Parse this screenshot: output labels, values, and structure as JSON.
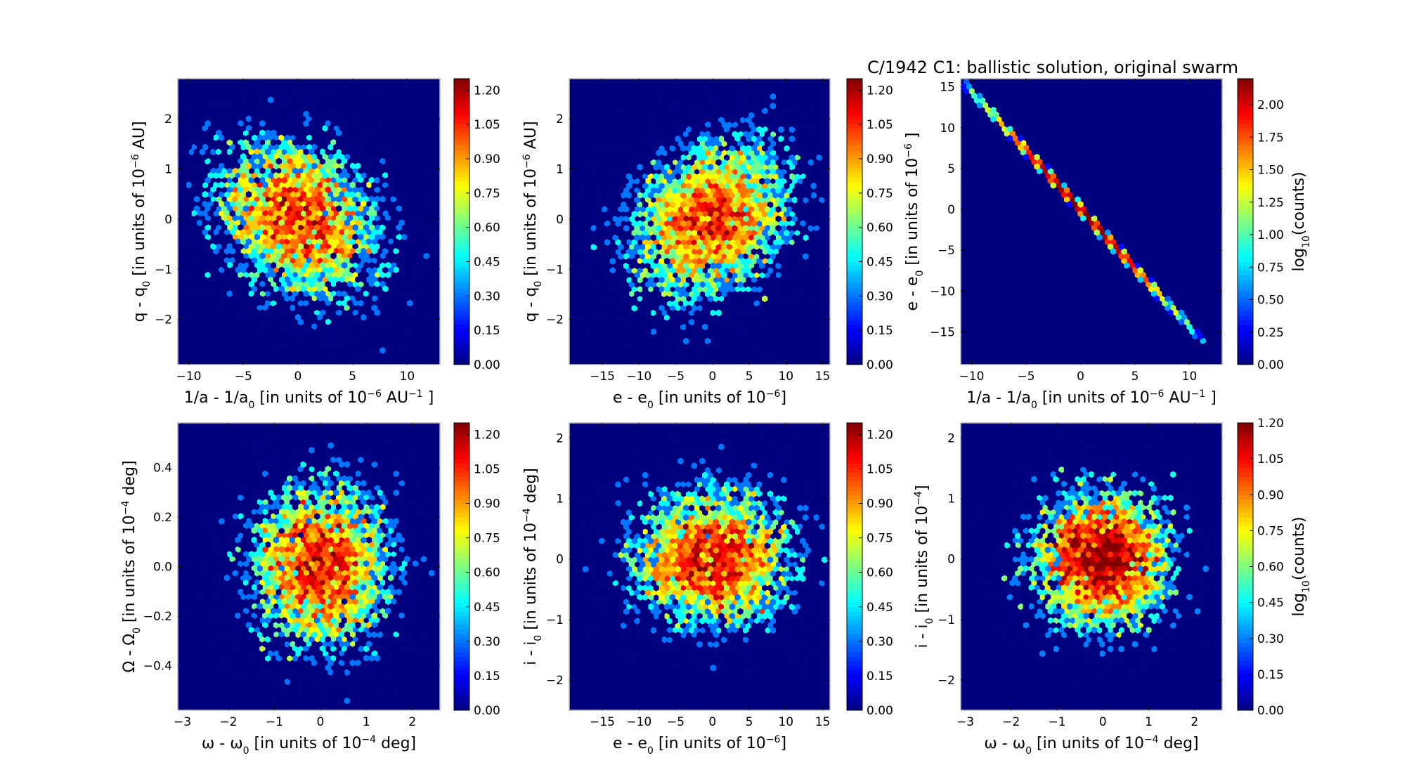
{
  "chart_data": {
    "type": "heatmap",
    "title": "C/1942 C1:  ballistic solution, original swarm",
    "panels": [
      {
        "id": "q-vs-inva",
        "xlabel": [
          [
            "1/a - 1/a",
            ""
          ],
          [
            "0",
            "sub"
          ],
          [
            " [in units of 10",
            ""
          ],
          [
            "−6",
            "sup"
          ],
          [
            "  AU",
            ""
          ],
          [
            "−1",
            "sup"
          ],
          [
            " ]",
            ""
          ]
        ],
        "ylabel": [
          [
            "q - q",
            ""
          ],
          [
            "0",
            "sub"
          ],
          [
            " [in units of 10",
            ""
          ],
          [
            "−6",
            "sup"
          ],
          [
            "  AU]",
            ""
          ]
        ],
        "xlim": [
          -11,
          13
        ],
        "ylim": [
          -2.9,
          2.8
        ],
        "xticks": [
          "−10",
          "−5",
          "0",
          "5",
          "10"
        ],
        "xtick_values": [
          -10,
          -5,
          0,
          5,
          10
        ],
        "yticks": [
          "−2",
          "−1",
          "0",
          "1",
          "2"
        ],
        "ytick_values": [
          -2,
          -1,
          0,
          1,
          2
        ],
        "colorbar": {
          "range": [
            0,
            1.25
          ],
          "ticks": [
            "0.00",
            "0.15",
            "0.30",
            "0.45",
            "0.60",
            "0.75",
            "0.90",
            "1.05",
            "1.20"
          ],
          "tick_values": [
            0,
            0.15,
            0.3,
            0.45,
            0.6,
            0.75,
            0.9,
            1.05,
            1.2
          ],
          "label": null
        },
        "distribution": {
          "kind": "gaussian",
          "mean": [
            0,
            0
          ],
          "sd": [
            4.0,
            0.85
          ],
          "corr": -0.25,
          "n": 5000
        }
      },
      {
        "id": "q-vs-e",
        "xlabel": [
          [
            "e - e",
            ""
          ],
          [
            "0",
            "sub"
          ],
          [
            " [in units of 10",
            ""
          ],
          [
            "−6",
            "sup"
          ],
          [
            "]",
            ""
          ]
        ],
        "ylabel": [
          [
            "q - q",
            ""
          ],
          [
            "0",
            "sub"
          ],
          [
            " [in units of 10",
            ""
          ],
          [
            "−6",
            "sup"
          ],
          [
            "  AU]",
            ""
          ]
        ],
        "xlim": [
          -19.5,
          16
        ],
        "ylim": [
          -2.9,
          2.8
        ],
        "xticks": [
          "−15",
          "−10",
          "−5",
          "0",
          "5",
          "10",
          "15"
        ],
        "xtick_values": [
          -15,
          -10,
          -5,
          0,
          5,
          10,
          15
        ],
        "yticks": [
          "−2",
          "−1",
          "0",
          "1",
          "2"
        ],
        "ytick_values": [
          -2,
          -1,
          0,
          1,
          2
        ],
        "colorbar": {
          "range": [
            0,
            1.25
          ],
          "ticks": [
            "0.00",
            "0.15",
            "0.30",
            "0.45",
            "0.60",
            "0.75",
            "0.90",
            "1.05",
            "1.20"
          ],
          "tick_values": [
            0,
            0.15,
            0.3,
            0.45,
            0.6,
            0.75,
            0.9,
            1.05,
            1.2
          ],
          "label": null
        },
        "distribution": {
          "kind": "gaussian",
          "mean": [
            0,
            0
          ],
          "sd": [
            5.8,
            0.85
          ],
          "corr": 0.25,
          "n": 5000
        }
      },
      {
        "id": "e-vs-inva",
        "xlabel": [
          [
            "1/a - 1/a",
            ""
          ],
          [
            "0",
            "sub"
          ],
          [
            " [in units of 10",
            ""
          ],
          [
            "−6",
            "sup"
          ],
          [
            "  AU",
            ""
          ],
          [
            "−1",
            "sup"
          ],
          [
            " ]",
            ""
          ]
        ],
        "ylabel": [
          [
            "e - e",
            ""
          ],
          [
            "0",
            "sub"
          ],
          [
            " [in units of 10",
            ""
          ],
          [
            "−6",
            "sup"
          ],
          [
            " ]",
            ""
          ]
        ],
        "xlim": [
          -11,
          13
        ],
        "ylim": [
          -19,
          16
        ],
        "xticks": [
          "−10",
          "−5",
          "0",
          "5",
          "10"
        ],
        "xtick_values": [
          -10,
          -5,
          0,
          5,
          10
        ],
        "yticks": [
          "−15",
          "−10",
          "−5",
          "0",
          "5",
          "10",
          "15"
        ],
        "ytick_values": [
          -15,
          -10,
          -5,
          0,
          5,
          10,
          15
        ],
        "colorbar": {
          "range": [
            0,
            2.2
          ],
          "ticks": [
            "0.00",
            "0.25",
            "0.50",
            "0.75",
            "1.00",
            "1.25",
            "1.50",
            "1.75",
            "2.00"
          ],
          "tick_values": [
            0,
            0.25,
            0.5,
            0.75,
            1,
            1.25,
            1.5,
            1.75,
            2
          ],
          "label": [
            [
              "log",
              ""
            ],
            [
              "10",
              "sub"
            ],
            [
              "(counts)",
              ""
            ]
          ]
        },
        "distribution": {
          "kind": "linear",
          "slope": -1.44,
          "intercept": 0,
          "sd": [
            4.0
          ],
          "n": 5000
        }
      },
      {
        "id": "Omega-vs-omega",
        "xlabel": [
          [
            "ω - ω",
            ""
          ],
          [
            "0",
            "sub"
          ],
          [
            " [in units of 10",
            ""
          ],
          [
            "−4",
            "sup"
          ],
          [
            "  deg]",
            ""
          ]
        ],
        "ylabel": [
          [
            "Ω - Ω",
            ""
          ],
          [
            "0",
            "sub"
          ],
          [
            " [in units of 10",
            ""
          ],
          [
            "−4",
            "sup"
          ],
          [
            "  deg]",
            ""
          ]
        ],
        "xlim": [
          -3.1,
          2.6
        ],
        "ylim": [
          -0.58,
          0.58
        ],
        "xticks": [
          "−3",
          "−2",
          "−1",
          "0",
          "1",
          "2"
        ],
        "xtick_values": [
          -3,
          -2,
          -1,
          0,
          1,
          2
        ],
        "yticks": [
          "−0.4",
          "−0.2",
          "0.0",
          "0.2",
          "0.4"
        ],
        "ytick_values": [
          -0.4,
          -0.2,
          0,
          0.2,
          0.4
        ],
        "colorbar": {
          "range": [
            0,
            1.25
          ],
          "ticks": [
            "0.00",
            "0.15",
            "0.30",
            "0.45",
            "0.60",
            "0.75",
            "0.90",
            "1.05",
            "1.20"
          ],
          "tick_values": [
            0,
            0.15,
            0.3,
            0.45,
            0.6,
            0.75,
            0.9,
            1.05,
            1.2
          ],
          "label": null
        },
        "distribution": {
          "kind": "gaussian",
          "mean": [
            0,
            0
          ],
          "sd": [
            0.8,
            0.18
          ],
          "corr": 0,
          "n": 5000
        }
      },
      {
        "id": "i-vs-e",
        "xlabel": [
          [
            "e - e",
            ""
          ],
          [
            "0",
            "sub"
          ],
          [
            " [in units of 10",
            ""
          ],
          [
            "−6",
            "sup"
          ],
          [
            "]",
            ""
          ]
        ],
        "ylabel": [
          [
            "i - i",
            ""
          ],
          [
            "0",
            "sub"
          ],
          [
            " [in units of 10",
            ""
          ],
          [
            "−4",
            "sup"
          ],
          [
            "  deg]",
            ""
          ]
        ],
        "xlim": [
          -19.5,
          16
        ],
        "ylim": [
          -2.5,
          2.25
        ],
        "xticks": [
          "−15",
          "−10",
          "−5",
          "0",
          "5",
          "10",
          "15"
        ],
        "xtick_values": [
          -15,
          -10,
          -5,
          0,
          5,
          10,
          15
        ],
        "yticks": [
          "−2",
          "−1",
          "0",
          "1",
          "2"
        ],
        "ytick_values": [
          -2,
          -1,
          0,
          1,
          2
        ],
        "colorbar": {
          "range": [
            0,
            1.25
          ],
          "ticks": [
            "0.00",
            "0.15",
            "0.30",
            "0.45",
            "0.60",
            "0.75",
            "0.90",
            "1.05",
            "1.20"
          ],
          "tick_values": [
            0,
            0.15,
            0.3,
            0.45,
            0.6,
            0.75,
            0.9,
            1.05,
            1.2
          ],
          "label": null
        },
        "distribution": {
          "kind": "gaussian",
          "mean": [
            0,
            0
          ],
          "sd": [
            5.8,
            0.6
          ],
          "corr": 0,
          "n": 5000
        }
      },
      {
        "id": "i-vs-omega",
        "xlabel": [
          [
            "ω - ω",
            ""
          ],
          [
            "0",
            "sub"
          ],
          [
            " [in units of 10",
            ""
          ],
          [
            "−4",
            "sup"
          ],
          [
            "  deg]",
            ""
          ]
        ],
        "ylabel": [
          [
            "i - i",
            ""
          ],
          [
            "0",
            "sub"
          ],
          [
            " [in units of 10",
            ""
          ],
          [
            "−4",
            "sup"
          ],
          [
            "]",
            ""
          ]
        ],
        "xlim": [
          -3.1,
          2.6
        ],
        "ylim": [
          -2.5,
          2.25
        ],
        "xticks": [
          "−3",
          "−2",
          "−1",
          "0",
          "1",
          "2"
        ],
        "xtick_values": [
          -3,
          -2,
          -1,
          0,
          1,
          2
        ],
        "yticks": [
          "−2",
          "−1",
          "0",
          "1",
          "2"
        ],
        "ytick_values": [
          -2,
          -1,
          0,
          1,
          2
        ],
        "colorbar": {
          "range": [
            0,
            1.2
          ],
          "ticks": [
            "0.00",
            "0.15",
            "0.30",
            "0.45",
            "0.60",
            "0.75",
            "0.90",
            "1.05",
            "1.20"
          ],
          "tick_values": [
            0,
            0.15,
            0.3,
            0.45,
            0.6,
            0.75,
            0.9,
            1.05,
            1.2
          ],
          "label": [
            [
              "log",
              ""
            ],
            [
              "10",
              "sub"
            ],
            [
              "(counts)",
              ""
            ]
          ]
        },
        "distribution": {
          "kind": "gaussian",
          "mean": [
            0,
            0
          ],
          "sd": [
            0.8,
            0.6
          ],
          "corr": 0,
          "n": 5000
        }
      }
    ]
  }
}
